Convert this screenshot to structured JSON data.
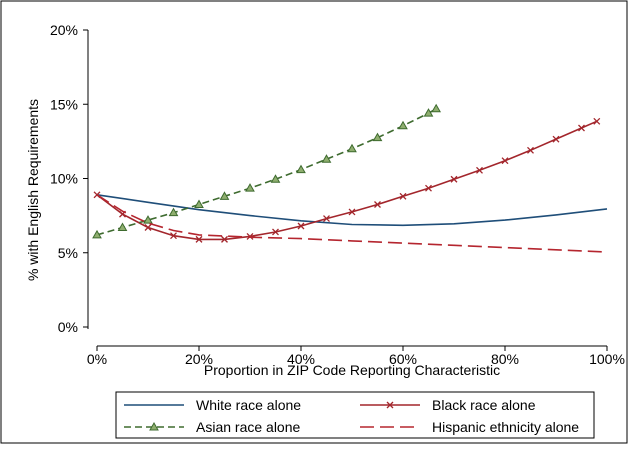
{
  "chart_data": {
    "type": "line",
    "title": "",
    "xlabel": "Proportion in ZIP Code Reporting Characteristic",
    "ylabel": "% with English Requirements",
    "xlim": [
      0,
      100
    ],
    "ylim": [
      0,
      20
    ],
    "x_ticks": [
      0,
      20,
      40,
      60,
      80,
      100
    ],
    "x_tick_labels": [
      "0%",
      "20%",
      "40%",
      "60%",
      "80%",
      "100%"
    ],
    "y_ticks": [
      0,
      5,
      10,
      15,
      20
    ],
    "y_tick_labels": [
      "0%",
      "5%",
      "10%",
      "15%",
      "20%"
    ],
    "grid": false,
    "legend_position": "bottom",
    "series": [
      {
        "name": "White race alone",
        "color": "#1f4e79",
        "style": "solid",
        "marker": "none",
        "x": [
          0,
          10,
          20,
          30,
          40,
          50,
          60,
          70,
          80,
          90,
          100
        ],
        "y": [
          8.9,
          8.4,
          7.9,
          7.5,
          7.15,
          6.9,
          6.85,
          6.95,
          7.2,
          7.55,
          7.95
        ]
      },
      {
        "name": "Black race alone",
        "color": "#a3262c",
        "style": "solid",
        "marker": "x",
        "x": [
          0,
          5,
          10,
          15,
          20,
          25,
          30,
          35,
          40,
          45,
          50,
          55,
          60,
          65,
          70,
          75,
          80,
          85,
          90,
          95,
          98
        ],
        "y": [
          8.9,
          7.6,
          6.7,
          6.15,
          5.9,
          5.9,
          6.1,
          6.4,
          6.8,
          7.3,
          7.75,
          8.25,
          8.8,
          9.35,
          9.95,
          10.55,
          11.2,
          11.9,
          12.65,
          13.4,
          13.85
        ]
      },
      {
        "name": "Asian race alone",
        "color": "#3e6b2f",
        "style": "dashed",
        "marker": "triangle",
        "x": [
          0,
          5,
          10,
          15,
          20,
          25,
          30,
          35,
          40,
          45,
          50,
          55,
          60,
          65,
          66.5
        ],
        "y": [
          6.2,
          6.7,
          7.2,
          7.7,
          8.25,
          8.8,
          9.35,
          9.95,
          10.6,
          11.3,
          12.0,
          12.75,
          13.55,
          14.4,
          14.7
        ]
      },
      {
        "name": "Hispanic ethnicity alone",
        "color": "#b5262f",
        "style": "longdash",
        "marker": "none",
        "x": [
          0,
          5,
          10,
          15,
          20,
          30,
          40,
          50,
          60,
          70,
          80,
          90,
          100
        ],
        "y": [
          8.9,
          7.8,
          7.0,
          6.5,
          6.2,
          6.05,
          5.95,
          5.8,
          5.65,
          5.5,
          5.35,
          5.2,
          5.05
        ]
      }
    ]
  }
}
